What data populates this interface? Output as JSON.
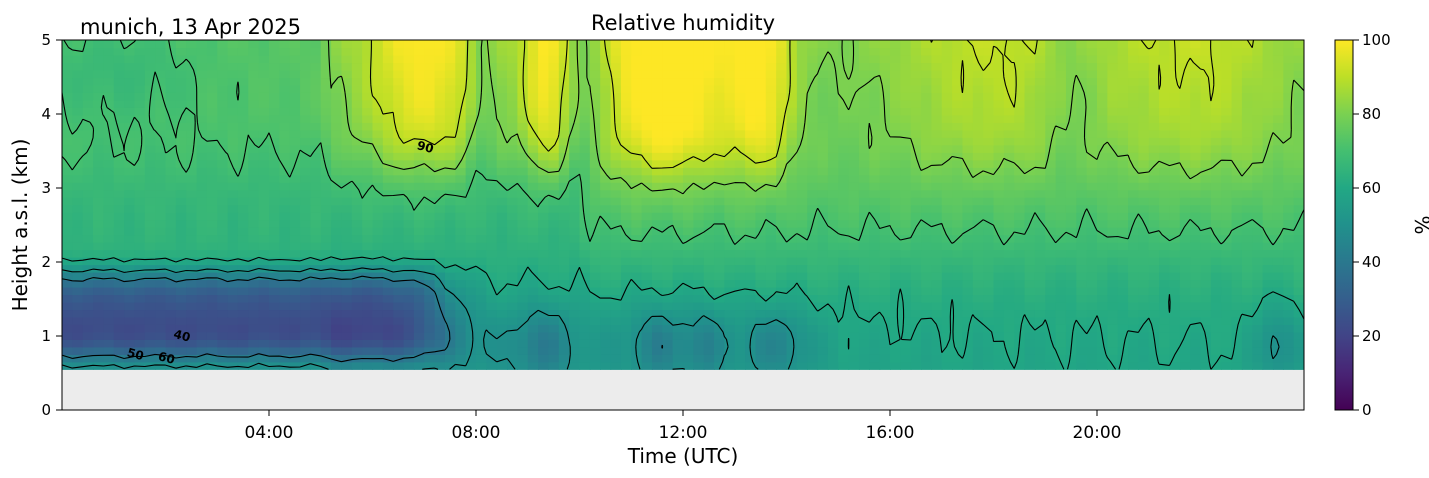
{
  "chart_data": {
    "type": "heatmap",
    "title": "Relative humidity",
    "subtitle": "munich, 13 Apr 2025",
    "xlabel": "Time (UTC)",
    "ylabel": "Height a.s.l. (km)",
    "xlim_hours": [
      0,
      24
    ],
    "ylim_km": [
      0,
      5
    ],
    "x_ticks": [
      "04:00",
      "08:00",
      "12:00",
      "16:00",
      "20:00"
    ],
    "x_tick_hours": [
      4,
      8,
      12,
      16,
      20
    ],
    "y_ticks": [
      "0",
      "1",
      "2",
      "3",
      "4",
      "5"
    ],
    "y_tick_values": [
      0,
      1,
      2,
      3,
      4,
      5
    ],
    "data_bottom_km": 0.55,
    "colorbar": {
      "label": "%",
      "range": [
        0,
        100
      ],
      "ticks": [
        "0",
        "20",
        "40",
        "60",
        "80",
        "100"
      ],
      "tick_values": [
        0,
        20,
        40,
        60,
        80,
        100
      ],
      "colormap": "viridis"
    },
    "contour_levels": [
      40,
      50,
      60,
      70,
      80,
      90
    ],
    "contour_labels": [
      {
        "text": "90",
        "hour": 7.0,
        "km": 3.5
      },
      {
        "text": "40",
        "hour": 2.3,
        "km": 0.95
      },
      {
        "text": "50",
        "hour": 1.4,
        "km": 0.7
      },
      {
        "text": "60",
        "hour": 2.0,
        "km": 0.65
      }
    ],
    "missing_color": "#ececec"
  }
}
